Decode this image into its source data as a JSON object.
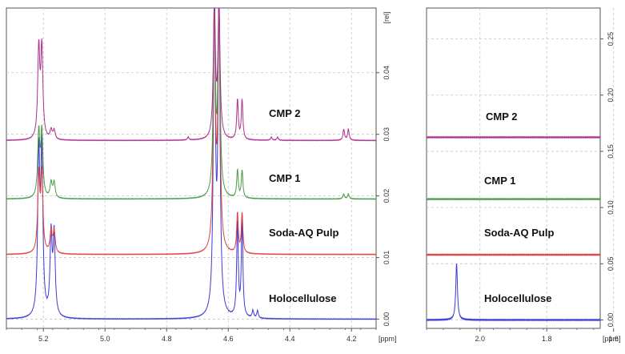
{
  "chart_data": [
    {
      "type": "line",
      "panel": "left",
      "xlabel": "[ppm]",
      "ylabel": "[rel]",
      "xlim": [
        5.32,
        4.12
      ],
      "ylim": [
        -0.0015,
        0.0505
      ],
      "x_ticks": [
        "5.2",
        "5.0",
        "4.8",
        "4.6",
        "4.4",
        "4.2"
      ],
      "y_ticks": [
        "0.00",
        "0.01",
        "0.02",
        "0.03",
        "0.04"
      ],
      "series": [
        {
          "name": "Holocellulose",
          "color": "#3b3bd6",
          "baseline": 0.0,
          "peaks": [
            {
              "ppm": 5.215,
              "height": 0.026,
              "width": 0.004
            },
            {
              "ppm": 5.205,
              "height": 0.026,
              "width": 0.004
            },
            {
              "ppm": 5.175,
              "height": 0.013,
              "width": 0.004
            },
            {
              "ppm": 5.165,
              "height": 0.013,
              "width": 0.004
            },
            {
              "ppm": 4.645,
              "height": 0.05,
              "width": 0.004
            },
            {
              "ppm": 4.63,
              "height": 0.05,
              "width": 0.004
            },
            {
              "ppm": 4.57,
              "height": 0.0155,
              "width": 0.003
            },
            {
              "ppm": 4.555,
              "height": 0.0155,
              "width": 0.003
            },
            {
              "ppm": 4.52,
              "height": 0.0012,
              "width": 0.003
            },
            {
              "ppm": 4.505,
              "height": 0.0012,
              "width": 0.003
            }
          ]
        },
        {
          "name": "Soda-AQ Pulp",
          "color": "#e04040",
          "baseline": 0.0105,
          "peaks": [
            {
              "ppm": 5.215,
              "height": 0.0125,
              "width": 0.004
            },
            {
              "ppm": 5.205,
              "height": 0.0125,
              "width": 0.004
            },
            {
              "ppm": 5.175,
              "height": 0.0035,
              "width": 0.004
            },
            {
              "ppm": 5.165,
              "height": 0.0035,
              "width": 0.004
            },
            {
              "ppm": 4.645,
              "height": 0.04,
              "width": 0.004
            },
            {
              "ppm": 4.63,
              "height": 0.04,
              "width": 0.004
            },
            {
              "ppm": 4.57,
              "height": 0.0065,
              "width": 0.003
            },
            {
              "ppm": 4.555,
              "height": 0.0065,
              "width": 0.003
            }
          ]
        },
        {
          "name": "CMP 1",
          "color": "#4a9a4a",
          "baseline": 0.0195,
          "peaks": [
            {
              "ppm": 5.215,
              "height": 0.0105,
              "width": 0.004
            },
            {
              "ppm": 5.205,
              "height": 0.0105,
              "width": 0.004
            },
            {
              "ppm": 5.175,
              "height": 0.0025,
              "width": 0.004
            },
            {
              "ppm": 5.165,
              "height": 0.0025,
              "width": 0.004
            },
            {
              "ppm": 4.645,
              "height": 0.031,
              "width": 0.004
            },
            {
              "ppm": 4.63,
              "height": 0.031,
              "width": 0.004
            },
            {
              "ppm": 4.57,
              "height": 0.0045,
              "width": 0.003
            },
            {
              "ppm": 4.555,
              "height": 0.0045,
              "width": 0.003
            },
            {
              "ppm": 4.225,
              "height": 0.0008,
              "width": 0.003
            },
            {
              "ppm": 4.21,
              "height": 0.0008,
              "width": 0.003
            }
          ]
        },
        {
          "name": "CMP 2",
          "color": "#b0308f",
          "baseline": 0.029,
          "peaks": [
            {
              "ppm": 5.215,
              "height": 0.0145,
              "width": 0.004
            },
            {
              "ppm": 5.205,
              "height": 0.0145,
              "width": 0.004
            },
            {
              "ppm": 5.175,
              "height": 0.0015,
              "width": 0.004
            },
            {
              "ppm": 5.165,
              "height": 0.0015,
              "width": 0.004
            },
            {
              "ppm": 4.645,
              "height": 0.0215,
              "width": 0.004
            },
            {
              "ppm": 4.63,
              "height": 0.0215,
              "width": 0.004
            },
            {
              "ppm": 4.57,
              "height": 0.0065,
              "width": 0.003
            },
            {
              "ppm": 4.555,
              "height": 0.0065,
              "width": 0.003
            },
            {
              "ppm": 4.73,
              "height": 0.0005,
              "width": 0.003
            },
            {
              "ppm": 4.46,
              "height": 0.0005,
              "width": 0.003
            },
            {
              "ppm": 4.44,
              "height": 0.0005,
              "width": 0.003
            },
            {
              "ppm": 4.225,
              "height": 0.0018,
              "width": 0.003
            },
            {
              "ppm": 4.21,
              "height": 0.0018,
              "width": 0.003
            }
          ]
        }
      ]
    },
    {
      "type": "line",
      "panel": "right",
      "xlabel": "[ppm]",
      "ylabel": "",
      "xlim": [
        2.16,
        1.64
      ],
      "ylim": [
        -0.0075,
        0.2775
      ],
      "x_ticks": [
        "2.0",
        "1.8",
        "1.6"
      ],
      "y_ticks": [
        "0.00",
        "0.05",
        "0.10",
        "0.15",
        "0.20",
        "0.25"
      ],
      "series": [
        {
          "name": "Holocellulose",
          "color": "#3b3bd6",
          "baseline": 0.0,
          "peaks": [
            {
              "ppm": 2.07,
              "height": 0.05,
              "width": 0.003
            }
          ]
        },
        {
          "name": "Soda-AQ Pulp",
          "color": "#e04040",
          "baseline": 0.058,
          "peaks": []
        },
        {
          "name": "CMP 1",
          "color": "#4a9a4a",
          "baseline": 0.1075,
          "peaks": []
        },
        {
          "name": "CMP 2",
          "color": "#b0308f",
          "baseline": 0.1625,
          "peaks": []
        }
      ]
    }
  ]
}
